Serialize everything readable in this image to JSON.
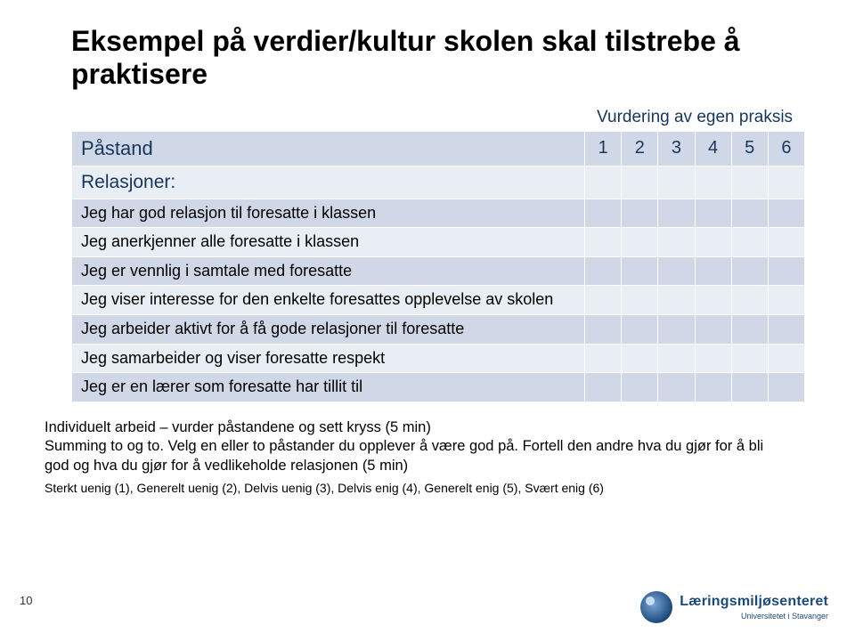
{
  "title": "Eksempel på verdier/kultur skolen skal tilstrebe å praktisere",
  "table": {
    "vurdering_header": "Vurdering av egen praksis",
    "pastand_header": "Påstand",
    "scale_headers": [
      "1",
      "2",
      "3",
      "4",
      "5",
      "6"
    ],
    "section_label": "Relasjoner:",
    "statements": [
      "Jeg har god relasjon til foresatte i klassen",
      "Jeg anerkjenner alle foresatte i klassen",
      "Jeg er vennlig i samtale med foresatte",
      "Jeg viser interesse for den enkelte foresattes opplevelse av skolen",
      "Jeg arbeider aktivt for å få gode relasjoner til foresatte",
      "Jeg samarbeider og viser foresatte respekt",
      "Jeg er en lærer som foresatte har tillit til"
    ],
    "colors": {
      "header_bg": "#d0d8e8",
      "row_light_bg": "#e9edf4",
      "row_dark_bg": "#d0d8e8",
      "header_text": "#17365d",
      "border": "#ffffff"
    }
  },
  "notes": "Individuelt arbeid – vurder påstandene og sett kryss (5 min)\nSumming to og to. Velg en eller to påstander du opplever å være god på. Fortell den andre hva du gjør for å bli god og hva du gjør for å vedlikeholde relasjonen (5 min)",
  "scale_note": "Sterkt uenig (1), Generelt uenig (2), Delvis uenig (3), Delvis enig (4), Generelt enig (5), Svært enig (6)",
  "page_number": "10",
  "logo": {
    "line1": "Læringsmiljøsenteret",
    "line2": "Universitetet i Stavanger"
  }
}
